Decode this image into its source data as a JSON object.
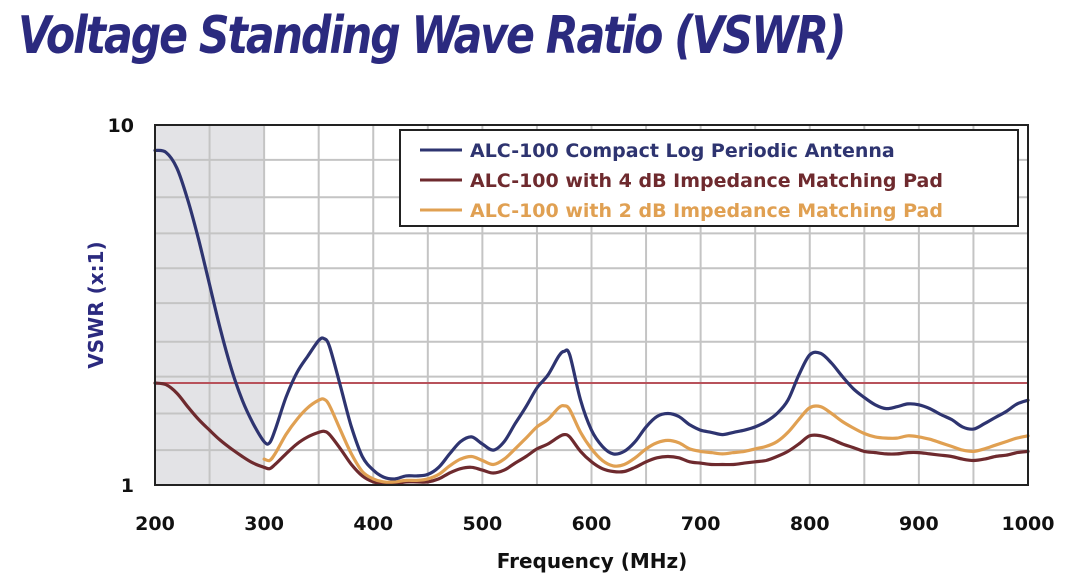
{
  "page": {
    "title": "Voltage Standing Wave Ratio (VSWR)"
  },
  "colors": {
    "title": "#2b2a7f",
    "shade": "#e3e3e6",
    "grid": "#c4c4c4",
    "axis_label": "#2b2a7f",
    "reference_line": "#b8525b"
  },
  "chart_data": {
    "type": "line",
    "title": "Voltage Standing Wave Ratio (VSWR)",
    "xlabel": "Frequency (MHz)",
    "ylabel": "VSWR (x:1)",
    "xlim": [
      200,
      1000
    ],
    "ylim": [
      1,
      10
    ],
    "y_scale": "log",
    "grid": true,
    "legend_position": "top-right",
    "x_ticks": [
      200,
      300,
      400,
      500,
      600,
      700,
      800,
      900,
      1000
    ],
    "x_tick_labels": [
      "200",
      "300",
      "400",
      "500",
      "600",
      "700",
      "800",
      "900",
      "1000"
    ],
    "y_tick_labels": [
      {
        "value": 10,
        "label": "10"
      },
      {
        "value": 1,
        "label": "1"
      }
    ],
    "x_gridlines": [
      250,
      300,
      350,
      400,
      450,
      500,
      550,
      600,
      650,
      700,
      750,
      800,
      850,
      900,
      950
    ],
    "y_gridlines": [
      1.25,
      1.58,
      2.0,
      2.5,
      3.2,
      4.0,
      5.0,
      6.3,
      8.0
    ],
    "shaded_region": {
      "x_start": 200,
      "x_end": 300
    },
    "reference_line": {
      "y": 1.92
    },
    "series": [
      {
        "name": "ALC-100 Compact Log Periodic Antenna",
        "color": "#2e3470",
        "x": [
          200,
          210,
          220,
          230,
          240,
          250,
          260,
          270,
          280,
          290,
          300,
          305,
          310,
          320,
          330,
          340,
          350,
          355,
          360,
          370,
          380,
          390,
          400,
          410,
          420,
          430,
          440,
          450,
          460,
          470,
          480,
          490,
          500,
          510,
          520,
          530,
          540,
          550,
          560,
          570,
          575,
          580,
          590,
          600,
          610,
          620,
          630,
          640,
          650,
          660,
          670,
          680,
          690,
          700,
          710,
          720,
          730,
          740,
          750,
          760,
          770,
          780,
          790,
          800,
          810,
          820,
          830,
          840,
          850,
          860,
          870,
          880,
          890,
          900,
          910,
          920,
          930,
          940,
          950,
          960,
          970,
          980,
          990,
          1000
        ],
        "y": [
          8.5,
          8.4,
          7.6,
          6.2,
          4.8,
          3.6,
          2.7,
          2.1,
          1.72,
          1.48,
          1.32,
          1.31,
          1.42,
          1.75,
          2.05,
          2.28,
          2.52,
          2.55,
          2.42,
          1.88,
          1.45,
          1.2,
          1.1,
          1.05,
          1.04,
          1.06,
          1.06,
          1.07,
          1.12,
          1.22,
          1.32,
          1.36,
          1.3,
          1.25,
          1.32,
          1.48,
          1.65,
          1.86,
          2.02,
          2.28,
          2.35,
          2.3,
          1.72,
          1.42,
          1.28,
          1.22,
          1.24,
          1.32,
          1.45,
          1.55,
          1.58,
          1.55,
          1.47,
          1.42,
          1.4,
          1.38,
          1.4,
          1.42,
          1.45,
          1.5,
          1.58,
          1.72,
          2.02,
          2.3,
          2.32,
          2.18,
          2.0,
          1.85,
          1.75,
          1.67,
          1.63,
          1.65,
          1.68,
          1.67,
          1.63,
          1.57,
          1.52,
          1.45,
          1.43,
          1.48,
          1.54,
          1.6,
          1.68,
          1.72
        ]
      },
      {
        "name": "ALC-100 with 4 dB Impedance Matching Pad",
        "color": "#6e2a2e",
        "x": [
          200,
          210,
          220,
          230,
          240,
          250,
          260,
          270,
          280,
          290,
          300,
          305,
          310,
          320,
          330,
          340,
          350,
          355,
          360,
          370,
          380,
          390,
          400,
          410,
          420,
          430,
          440,
          450,
          460,
          470,
          480,
          490,
          500,
          510,
          520,
          530,
          540,
          550,
          560,
          570,
          575,
          580,
          590,
          600,
          610,
          620,
          630,
          640,
          650,
          660,
          670,
          680,
          690,
          700,
          710,
          720,
          730,
          740,
          750,
          760,
          770,
          780,
          790,
          800,
          810,
          820,
          830,
          840,
          850,
          860,
          870,
          880,
          890,
          900,
          910,
          920,
          930,
          940,
          950,
          960,
          970,
          980,
          990,
          1000
        ],
        "y": [
          1.92,
          1.9,
          1.8,
          1.65,
          1.52,
          1.42,
          1.33,
          1.26,
          1.2,
          1.15,
          1.12,
          1.11,
          1.14,
          1.22,
          1.3,
          1.36,
          1.4,
          1.41,
          1.38,
          1.26,
          1.14,
          1.06,
          1.02,
          1.01,
          1.01,
          1.02,
          1.02,
          1.02,
          1.04,
          1.08,
          1.11,
          1.12,
          1.1,
          1.08,
          1.1,
          1.15,
          1.2,
          1.26,
          1.3,
          1.36,
          1.38,
          1.36,
          1.24,
          1.16,
          1.11,
          1.09,
          1.09,
          1.12,
          1.16,
          1.19,
          1.2,
          1.19,
          1.16,
          1.15,
          1.14,
          1.14,
          1.14,
          1.15,
          1.16,
          1.17,
          1.2,
          1.24,
          1.3,
          1.37,
          1.37,
          1.34,
          1.3,
          1.27,
          1.24,
          1.23,
          1.22,
          1.22,
          1.23,
          1.23,
          1.22,
          1.21,
          1.2,
          1.18,
          1.17,
          1.18,
          1.2,
          1.21,
          1.23,
          1.24
        ]
      },
      {
        "name": "ALC-100 with 2 dB Impedance Matching Pad",
        "color": "#e0a052",
        "x": [
          300,
          305,
          310,
          320,
          330,
          340,
          350,
          355,
          360,
          370,
          380,
          390,
          400,
          410,
          420,
          430,
          440,
          450,
          460,
          470,
          480,
          490,
          500,
          510,
          520,
          530,
          540,
          550,
          560,
          570,
          575,
          580,
          590,
          600,
          610,
          620,
          630,
          640,
          650,
          660,
          670,
          680,
          690,
          700,
          710,
          720,
          730,
          740,
          750,
          760,
          770,
          780,
          790,
          800,
          810,
          820,
          830,
          840,
          850,
          860,
          870,
          880,
          890,
          900,
          910,
          920,
          930,
          940,
          950,
          960,
          970,
          980,
          990,
          1000
        ],
        "y": [
          1.18,
          1.17,
          1.22,
          1.38,
          1.52,
          1.64,
          1.72,
          1.73,
          1.66,
          1.42,
          1.22,
          1.09,
          1.04,
          1.02,
          1.02,
          1.03,
          1.03,
          1.04,
          1.07,
          1.13,
          1.18,
          1.2,
          1.17,
          1.14,
          1.18,
          1.26,
          1.35,
          1.45,
          1.52,
          1.64,
          1.66,
          1.62,
          1.4,
          1.26,
          1.17,
          1.13,
          1.14,
          1.19,
          1.26,
          1.31,
          1.33,
          1.31,
          1.26,
          1.24,
          1.23,
          1.22,
          1.23,
          1.24,
          1.26,
          1.28,
          1.32,
          1.4,
          1.52,
          1.64,
          1.65,
          1.58,
          1.5,
          1.44,
          1.39,
          1.36,
          1.35,
          1.35,
          1.37,
          1.36,
          1.34,
          1.31,
          1.28,
          1.25,
          1.24,
          1.26,
          1.29,
          1.32,
          1.35,
          1.37
        ]
      }
    ]
  }
}
